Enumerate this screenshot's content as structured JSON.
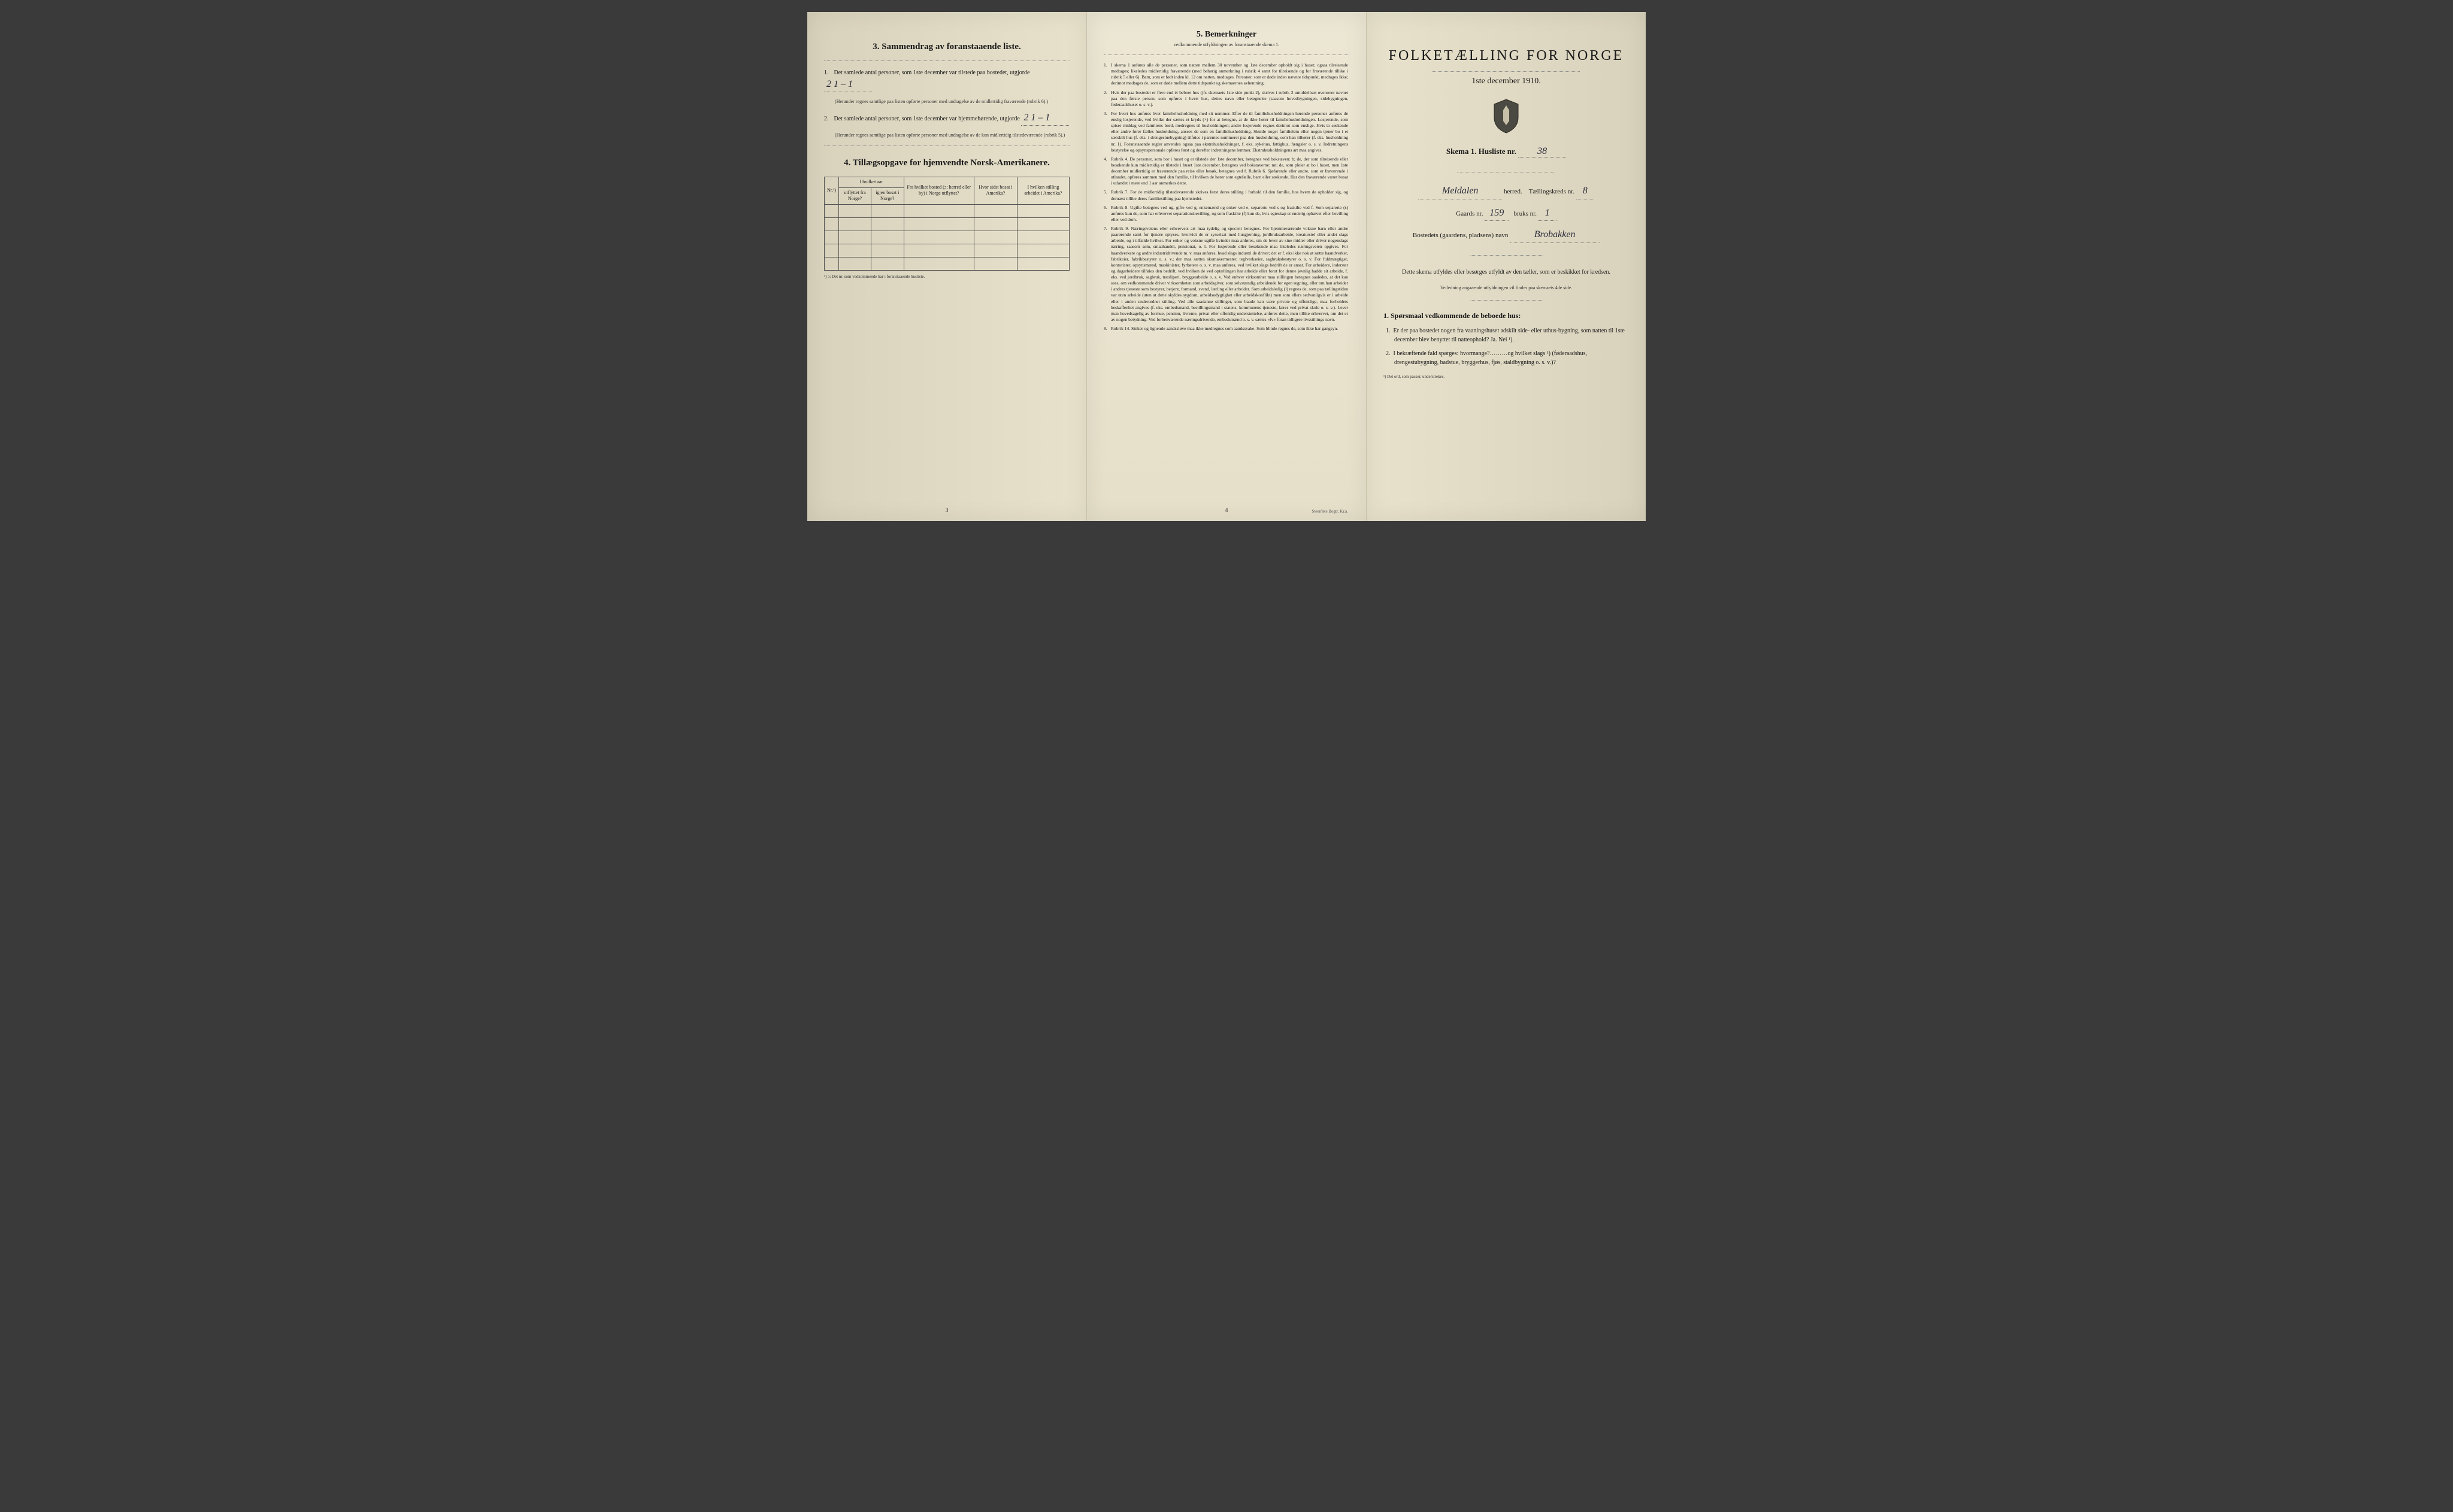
{
  "page_left": {
    "section3_title": "3.   Sammendrag av foranstaaende liste.",
    "item1_text": "Det samlede antal personer, som 1ste december var tilstede paa bostedet, utgjorde",
    "item1_value": "2   1 – 1",
    "item1_note": "(Herunder regnes samtlige paa listen opførte personer med undtagelse av de midlertidig fraværende (rubrik 6).)",
    "item2_text": "Det samlede antal personer, som 1ste december var hjemmehørende, utgjorde",
    "item2_value": "2   1 – 1",
    "item2_note": "(Herunder regnes samtlige paa listen opførte personer med undtagelse av de kun midlertidig tilstedeværende (rubrik 5).)",
    "section4_title": "4.   Tillægsopgave for hjemvendte Norsk-Amerikanere.",
    "table": {
      "col1": "Nr.¹)",
      "col2a": "I hvilket aar",
      "col2b": "utflyttet fra Norge?",
      "col2c": "igjen bosat i Norge?",
      "col3": "Fra hvilket bosted (ɔ: herred eller by) i Norge utflyttet?",
      "col4": "Hvor sidst bosat i Amerika?",
      "col5": "I hvilken stilling arbeidet i Amerika?"
    },
    "table_note": "¹) ɔ: Det nr. som vedkommende har i foranstaaende husliste.",
    "page_number": "3"
  },
  "page_middle": {
    "title": "5.   Bemerkninger",
    "subtitle": "vedkommende utfyldningen av foranstaaende skema 1.",
    "remarks": [
      "I skema 1 anføres alle de personer, som natten mellem 30 november og 1ste december opholdt sig i huset; ogsaa tilreisende medtages; likeledes midlertidig fraværende (med behørig anmerkning i rubrik 4 samt for tilreisende og for fraværende tillike i rubrik 5 eller 6). Barn, som er født inden kl. 12 om natten, medtages. Personer, som er døde inden nævnte tidspunkt, medtages ikke; derimot medtages de, som er døde mellem dette tidspunkt og skemaernes avhentning.",
      "Hvis der paa bostedet er flere end ét beboet hus (jfr. skemaets 1ste side punkt 2), skrives i rubrik 2 umiddelbart ovenover navnet paa den første person, som opføres i hvert hus, dettes navn eller betegnelse (saasom hovedbygningen, sidebygningen, føderaadshuset o. s. v.).",
      "For hvert hus anføres hver familiehusholdning med sit nummer. Efter de til familiehusholdningen hørende personer anføres de enslig losjerende, ved hvilke der sættes et kryds (×) for at betegne, at de ikke hører til familiehusholdningen. Losjerende, som spiser middag ved familiens bord, medregnes til husholdningen; andre losjerende regnes derimot som enslige. Hvis to søskende eller andre fører fælles husholdning, ansees de som en familiehusholdning. Skulde noget familielem eller nogen tjener bo i et særskilt hus (f. eks. i drengestuebygning) tilføies i parentes nummeret paa den husholdning, som han tilhører (f. eks. husholdning nr. 1). Foranstaaende regler anvendes ogsaa paa ekstrahusholdninger, f. eks. sykehus, fattighus, fængsler o. s. v. Indretningens bestyrelse og opsynspersonale opføres først og derefter indretningens lemmer. Ekstrahusholdningens art maa angives.",
      "Rubrik 4. De personer, som bor i huset og er tilstede der 1ste december, betegnes ved bokstaven: b; de, der som tilreisende eller besøkende kun midlertidig er tilstede i huset 1ste december, betegnes ved bokstaverne: mt; de, som pleier at bo i huset, men 1ste december midlertidig er fraværende paa reise eller besøk, betegnes ved f. Rubrik 6. Sjøfarende eller andre, som er fraværende i utlandet, opføres sammen med den familie, til hvilken de hører som egtefælle, barn eller søskende. Har den fraværende været bosat i utlandet i mere end 1 aar anmerkes dette.",
      "Rubrik 7. For de midlertidig tilstedeværende skrives først deres stilling i forhold til den familie, hos hvem de opholder sig, og dernæst tillike deres familiestilling paa hjemstedet.",
      "Rubrik 8. Ugifte betegnes ved ug, gifte ved g, enkemænd og enker ved e, separerte ved s og fraskilte ved f. Som separerte (s) anføres kun de, som har erhvervet separationsbevilling, og som fraskilte (f) kun de, hvis egteskap er endelig ophævet efter bevilling eller ved dom.",
      "Rubrik 9. Næringsveiens eller erhvervets art maa tydelig og specielt betegnes. For hjemmeværende voksne barn eller andre paarørende samt for tjenere oplyses, hvorvidt de er sysselsat med husgjerning, jordbruksarbeide, kreaturstel eller andet slags arbeide, og i tilfælde hvilket. For enker og voksne ugifte kvinder maa anføres, om de lever av sine midler eller driver nogenslags næring, saasom søm, smaahandel, pensionat, o. l. For losjerende eller besøkende maa likeledes næringsveien opgives. For haandverkere og andre industridrivende m. v. maa anføres, hvad slags industri de driver; det er f. eks ikke nok at sætte haandverker, fabrikeier, fabrikbestyrer o. s. v.; der maa sættes skomakermester, teglverkseier, sagbruksbestyrer o. s. v. For fuldmægtiger, kontorister, opsynsmænd, maskinister, fyrbøtere o. s. v. maa anføres, ved hvilket slags bedrift de er ansat. For arbeidere, inderster og dagarbeidere tilføies den bedrift, ved hvilken de ved optællingen har arbeide eller forut for denne jevnlig hadde sit arbeide, f. eks. ved jordbruk, sagbruk, træsliperi, bryggearbeide o. s. v. Ved enhver virksomhet maa stillingen betegnes saaledes, at det kan sees, om vedkommende driver virksomheten som arbeidsgiver, som selvstændig arbeidende for egen regning, eller om han arbeider i andres tjeneste som bestyrer, betjent, formand, svend, lærling eller arbeider. Som arbeidsledig (l) regnes de, som paa tællingstiden var uten arbeide (uten at dette skyldes sygdom, arbeidsudygtighet eller arbeidskonflikt) men som ellers sedvanligvis er i arbeide eller i anden underordnet stilling. Ved alle saadanne stillinger, som baade kan være private og offentlige, maa forholdets beskaffenhet angives (f. eks. embedsmand, bestillingsmand i statens, kommunens tjeneste, lærer ved privat skole o. s. v.). Lever man hovedsagelig av formue, pension, livrente, privat eller offentlig understøttelse, anføres dette, men tillike erhvervet, om det er av nogen betydning. Ved forhenværende næringsdrivende, embedsmænd o. s. v. sættes «fv» foran tidligere livsstillings navn.",
      "Rubrik 14. Sinker og lignende aandssløve maa ikke medregnes som aandssvake. Som blinde regnes de, som ikke har gangsyn."
    ],
    "page_number": "4",
    "printer": "Steen'ske Bogtr. Kr.a."
  },
  "page_right": {
    "main_title": "FOLKETÆLLING FOR NORGE",
    "date": "1ste december 1910.",
    "skema_label": "Skema 1.  Husliste nr.",
    "husliste_nr": "38",
    "herred_value": "Meldalen",
    "herred_label": "herred.",
    "kreds_label": "Tællingskreds nr.",
    "kreds_nr": "8",
    "gaards_label": "Gaards nr.",
    "gaards_nr": "159",
    "bruks_label": "bruks nr.",
    "bruks_nr": "1",
    "bosted_label": "Bostedets (gaardens, pladsens) navn",
    "bosted_value": "Brobakken",
    "instruction_main": "Dette skema utfyldes eller besørges utfyldt av den tæller, som er beskikket for kredsen.",
    "instruction_sub": "Veiledning angaaende utfyldningen vil findes paa skemaets 4de side.",
    "q_heading": "1. Spørsmaal vedkommende de beboede hus:",
    "q1": "Er der paa bostedet nogen fra vaaningshuset adskilt side- eller uthus-bygning, som natten til 1ste december blev benyttet til natteophold?   Ja.   Nei ¹).",
    "q2": "I bekræftende fald spørges: hvormange?………og hvilket slags ¹) (føderaadshus, drengestubygning, badstue, bryggerhus, fjøs, staldbygning o. s. v.)?",
    "footnote": "¹) Det ord, som passer, understrekes."
  }
}
